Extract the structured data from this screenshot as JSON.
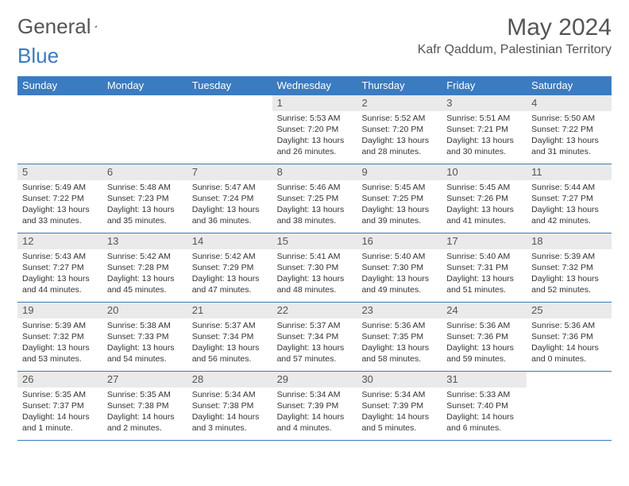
{
  "logo": {
    "text_general": "General",
    "text_blue": "Blue"
  },
  "title": "May 2024",
  "location": "Kafr Qaddum, Palestinian Territory",
  "weekdays": [
    "Sunday",
    "Monday",
    "Tuesday",
    "Wednesday",
    "Thursday",
    "Friday",
    "Saturday"
  ],
  "colors": {
    "header_bg": "#3b7bbf",
    "header_text": "#ffffff",
    "daynum_bg": "#eaeaea",
    "body_text": "#333333",
    "border": "#3b7bbf"
  },
  "typography": {
    "title_fontsize": 30,
    "location_fontsize": 16,
    "weekday_fontsize": 13,
    "daynum_fontsize": 13,
    "daybody_fontsize": 10.5
  },
  "rows": [
    [
      {
        "empty": true
      },
      {
        "empty": true
      },
      {
        "empty": true
      },
      {
        "day": "1",
        "sunrise": "Sunrise: 5:53 AM",
        "sunset": "Sunset: 7:20 PM",
        "daylight": "Daylight: 13 hours and 26 minutes."
      },
      {
        "day": "2",
        "sunrise": "Sunrise: 5:52 AM",
        "sunset": "Sunset: 7:20 PM",
        "daylight": "Daylight: 13 hours and 28 minutes."
      },
      {
        "day": "3",
        "sunrise": "Sunrise: 5:51 AM",
        "sunset": "Sunset: 7:21 PM",
        "daylight": "Daylight: 13 hours and 30 minutes."
      },
      {
        "day": "4",
        "sunrise": "Sunrise: 5:50 AM",
        "sunset": "Sunset: 7:22 PM",
        "daylight": "Daylight: 13 hours and 31 minutes."
      }
    ],
    [
      {
        "day": "5",
        "sunrise": "Sunrise: 5:49 AM",
        "sunset": "Sunset: 7:22 PM",
        "daylight": "Daylight: 13 hours and 33 minutes."
      },
      {
        "day": "6",
        "sunrise": "Sunrise: 5:48 AM",
        "sunset": "Sunset: 7:23 PM",
        "daylight": "Daylight: 13 hours and 35 minutes."
      },
      {
        "day": "7",
        "sunrise": "Sunrise: 5:47 AM",
        "sunset": "Sunset: 7:24 PM",
        "daylight": "Daylight: 13 hours and 36 minutes."
      },
      {
        "day": "8",
        "sunrise": "Sunrise: 5:46 AM",
        "sunset": "Sunset: 7:25 PM",
        "daylight": "Daylight: 13 hours and 38 minutes."
      },
      {
        "day": "9",
        "sunrise": "Sunrise: 5:45 AM",
        "sunset": "Sunset: 7:25 PM",
        "daylight": "Daylight: 13 hours and 39 minutes."
      },
      {
        "day": "10",
        "sunrise": "Sunrise: 5:45 AM",
        "sunset": "Sunset: 7:26 PM",
        "daylight": "Daylight: 13 hours and 41 minutes."
      },
      {
        "day": "11",
        "sunrise": "Sunrise: 5:44 AM",
        "sunset": "Sunset: 7:27 PM",
        "daylight": "Daylight: 13 hours and 42 minutes."
      }
    ],
    [
      {
        "day": "12",
        "sunrise": "Sunrise: 5:43 AM",
        "sunset": "Sunset: 7:27 PM",
        "daylight": "Daylight: 13 hours and 44 minutes."
      },
      {
        "day": "13",
        "sunrise": "Sunrise: 5:42 AM",
        "sunset": "Sunset: 7:28 PM",
        "daylight": "Daylight: 13 hours and 45 minutes."
      },
      {
        "day": "14",
        "sunrise": "Sunrise: 5:42 AM",
        "sunset": "Sunset: 7:29 PM",
        "daylight": "Daylight: 13 hours and 47 minutes."
      },
      {
        "day": "15",
        "sunrise": "Sunrise: 5:41 AM",
        "sunset": "Sunset: 7:30 PM",
        "daylight": "Daylight: 13 hours and 48 minutes."
      },
      {
        "day": "16",
        "sunrise": "Sunrise: 5:40 AM",
        "sunset": "Sunset: 7:30 PM",
        "daylight": "Daylight: 13 hours and 49 minutes."
      },
      {
        "day": "17",
        "sunrise": "Sunrise: 5:40 AM",
        "sunset": "Sunset: 7:31 PM",
        "daylight": "Daylight: 13 hours and 51 minutes."
      },
      {
        "day": "18",
        "sunrise": "Sunrise: 5:39 AM",
        "sunset": "Sunset: 7:32 PM",
        "daylight": "Daylight: 13 hours and 52 minutes."
      }
    ],
    [
      {
        "day": "19",
        "sunrise": "Sunrise: 5:39 AM",
        "sunset": "Sunset: 7:32 PM",
        "daylight": "Daylight: 13 hours and 53 minutes."
      },
      {
        "day": "20",
        "sunrise": "Sunrise: 5:38 AM",
        "sunset": "Sunset: 7:33 PM",
        "daylight": "Daylight: 13 hours and 54 minutes."
      },
      {
        "day": "21",
        "sunrise": "Sunrise: 5:37 AM",
        "sunset": "Sunset: 7:34 PM",
        "daylight": "Daylight: 13 hours and 56 minutes."
      },
      {
        "day": "22",
        "sunrise": "Sunrise: 5:37 AM",
        "sunset": "Sunset: 7:34 PM",
        "daylight": "Daylight: 13 hours and 57 minutes."
      },
      {
        "day": "23",
        "sunrise": "Sunrise: 5:36 AM",
        "sunset": "Sunset: 7:35 PM",
        "daylight": "Daylight: 13 hours and 58 minutes."
      },
      {
        "day": "24",
        "sunrise": "Sunrise: 5:36 AM",
        "sunset": "Sunset: 7:36 PM",
        "daylight": "Daylight: 13 hours and 59 minutes."
      },
      {
        "day": "25",
        "sunrise": "Sunrise: 5:36 AM",
        "sunset": "Sunset: 7:36 PM",
        "daylight": "Daylight: 14 hours and 0 minutes."
      }
    ],
    [
      {
        "day": "26",
        "sunrise": "Sunrise: 5:35 AM",
        "sunset": "Sunset: 7:37 PM",
        "daylight": "Daylight: 14 hours and 1 minute."
      },
      {
        "day": "27",
        "sunrise": "Sunrise: 5:35 AM",
        "sunset": "Sunset: 7:38 PM",
        "daylight": "Daylight: 14 hours and 2 minutes."
      },
      {
        "day": "28",
        "sunrise": "Sunrise: 5:34 AM",
        "sunset": "Sunset: 7:38 PM",
        "daylight": "Daylight: 14 hours and 3 minutes."
      },
      {
        "day": "29",
        "sunrise": "Sunrise: 5:34 AM",
        "sunset": "Sunset: 7:39 PM",
        "daylight": "Daylight: 14 hours and 4 minutes."
      },
      {
        "day": "30",
        "sunrise": "Sunrise: 5:34 AM",
        "sunset": "Sunset: 7:39 PM",
        "daylight": "Daylight: 14 hours and 5 minutes."
      },
      {
        "day": "31",
        "sunrise": "Sunrise: 5:33 AM",
        "sunset": "Sunset: 7:40 PM",
        "daylight": "Daylight: 14 hours and 6 minutes."
      },
      {
        "empty": true
      }
    ]
  ]
}
